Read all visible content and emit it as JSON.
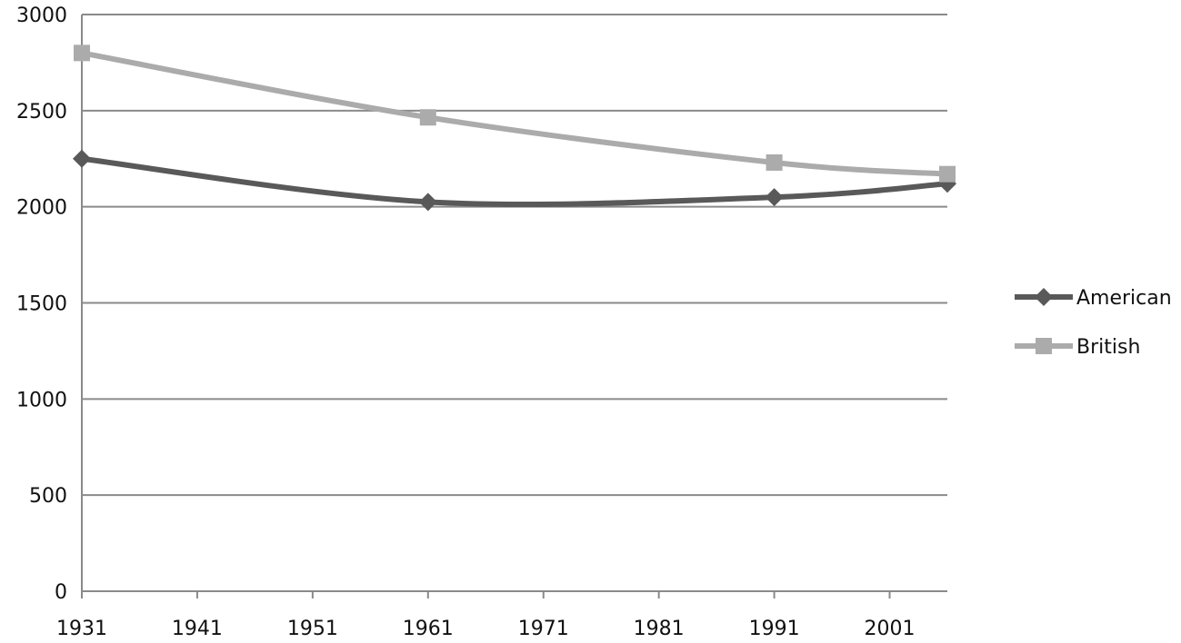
{
  "chart_data": {
    "type": "line",
    "title": "",
    "xlabel": "",
    "ylabel": "",
    "xlim": [
      1931,
      2006
    ],
    "ylim": [
      0,
      3000
    ],
    "x_ticks": [
      1931,
      1941,
      1951,
      1961,
      1971,
      1981,
      1991,
      2001
    ],
    "y_ticks": [
      0,
      500,
      1000,
      1500,
      2000,
      2500,
      3000
    ],
    "grid": true,
    "legend_position": "right",
    "smooth": true,
    "series": [
      {
        "name": "American",
        "color": "#595959",
        "marker": "diamond",
        "x": [
          1931,
          1961,
          1991,
          2006
        ],
        "values": [
          2250,
          2025,
          2050,
          2120
        ]
      },
      {
        "name": "British",
        "color": "#ababab",
        "marker": "square",
        "x": [
          1931,
          1961,
          1991,
          2006
        ],
        "values": [
          2800,
          2465,
          2230,
          2170
        ]
      }
    ]
  }
}
